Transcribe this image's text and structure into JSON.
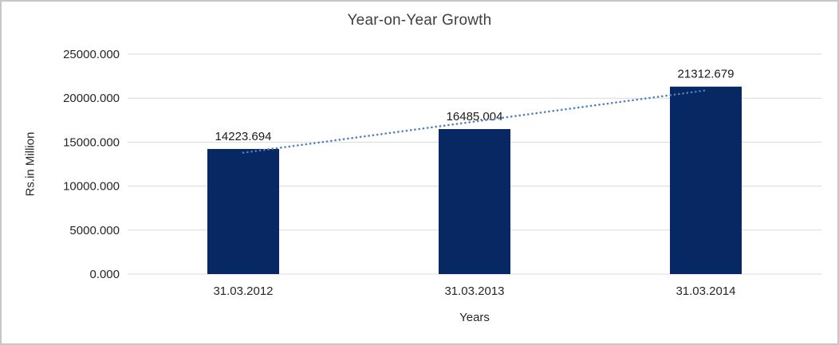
{
  "chart_data": {
    "type": "bar",
    "title": "Year-on-Year Growth",
    "xlabel": "Years",
    "ylabel": "Rs.in Million",
    "categories": [
      "31.03.2012",
      "31.03.2013",
      "31.03.2014"
    ],
    "values": [
      14223.694,
      16485.004,
      21312.679
    ],
    "value_labels": [
      "14223.694",
      "16485.004",
      "21312.679"
    ],
    "ylim": [
      0,
      25000
    ],
    "yticks": [
      0,
      5000,
      10000,
      15000,
      20000,
      25000
    ],
    "ytick_labels": [
      "0.000",
      "5000.000",
      "10000.000",
      "15000.000",
      "20000.000",
      "25000.000"
    ],
    "grid": true,
    "legend": "none",
    "trendline": {
      "type": "linear",
      "style": "dotted"
    },
    "colors": {
      "bar": "#082863",
      "trendline": "#4f7dc8",
      "gridline": "#d9d9d9",
      "axis_line": "#d9d9d9",
      "tick_text": "#262626",
      "value_text": "#1a1a1a",
      "title_text": "#404040"
    }
  }
}
